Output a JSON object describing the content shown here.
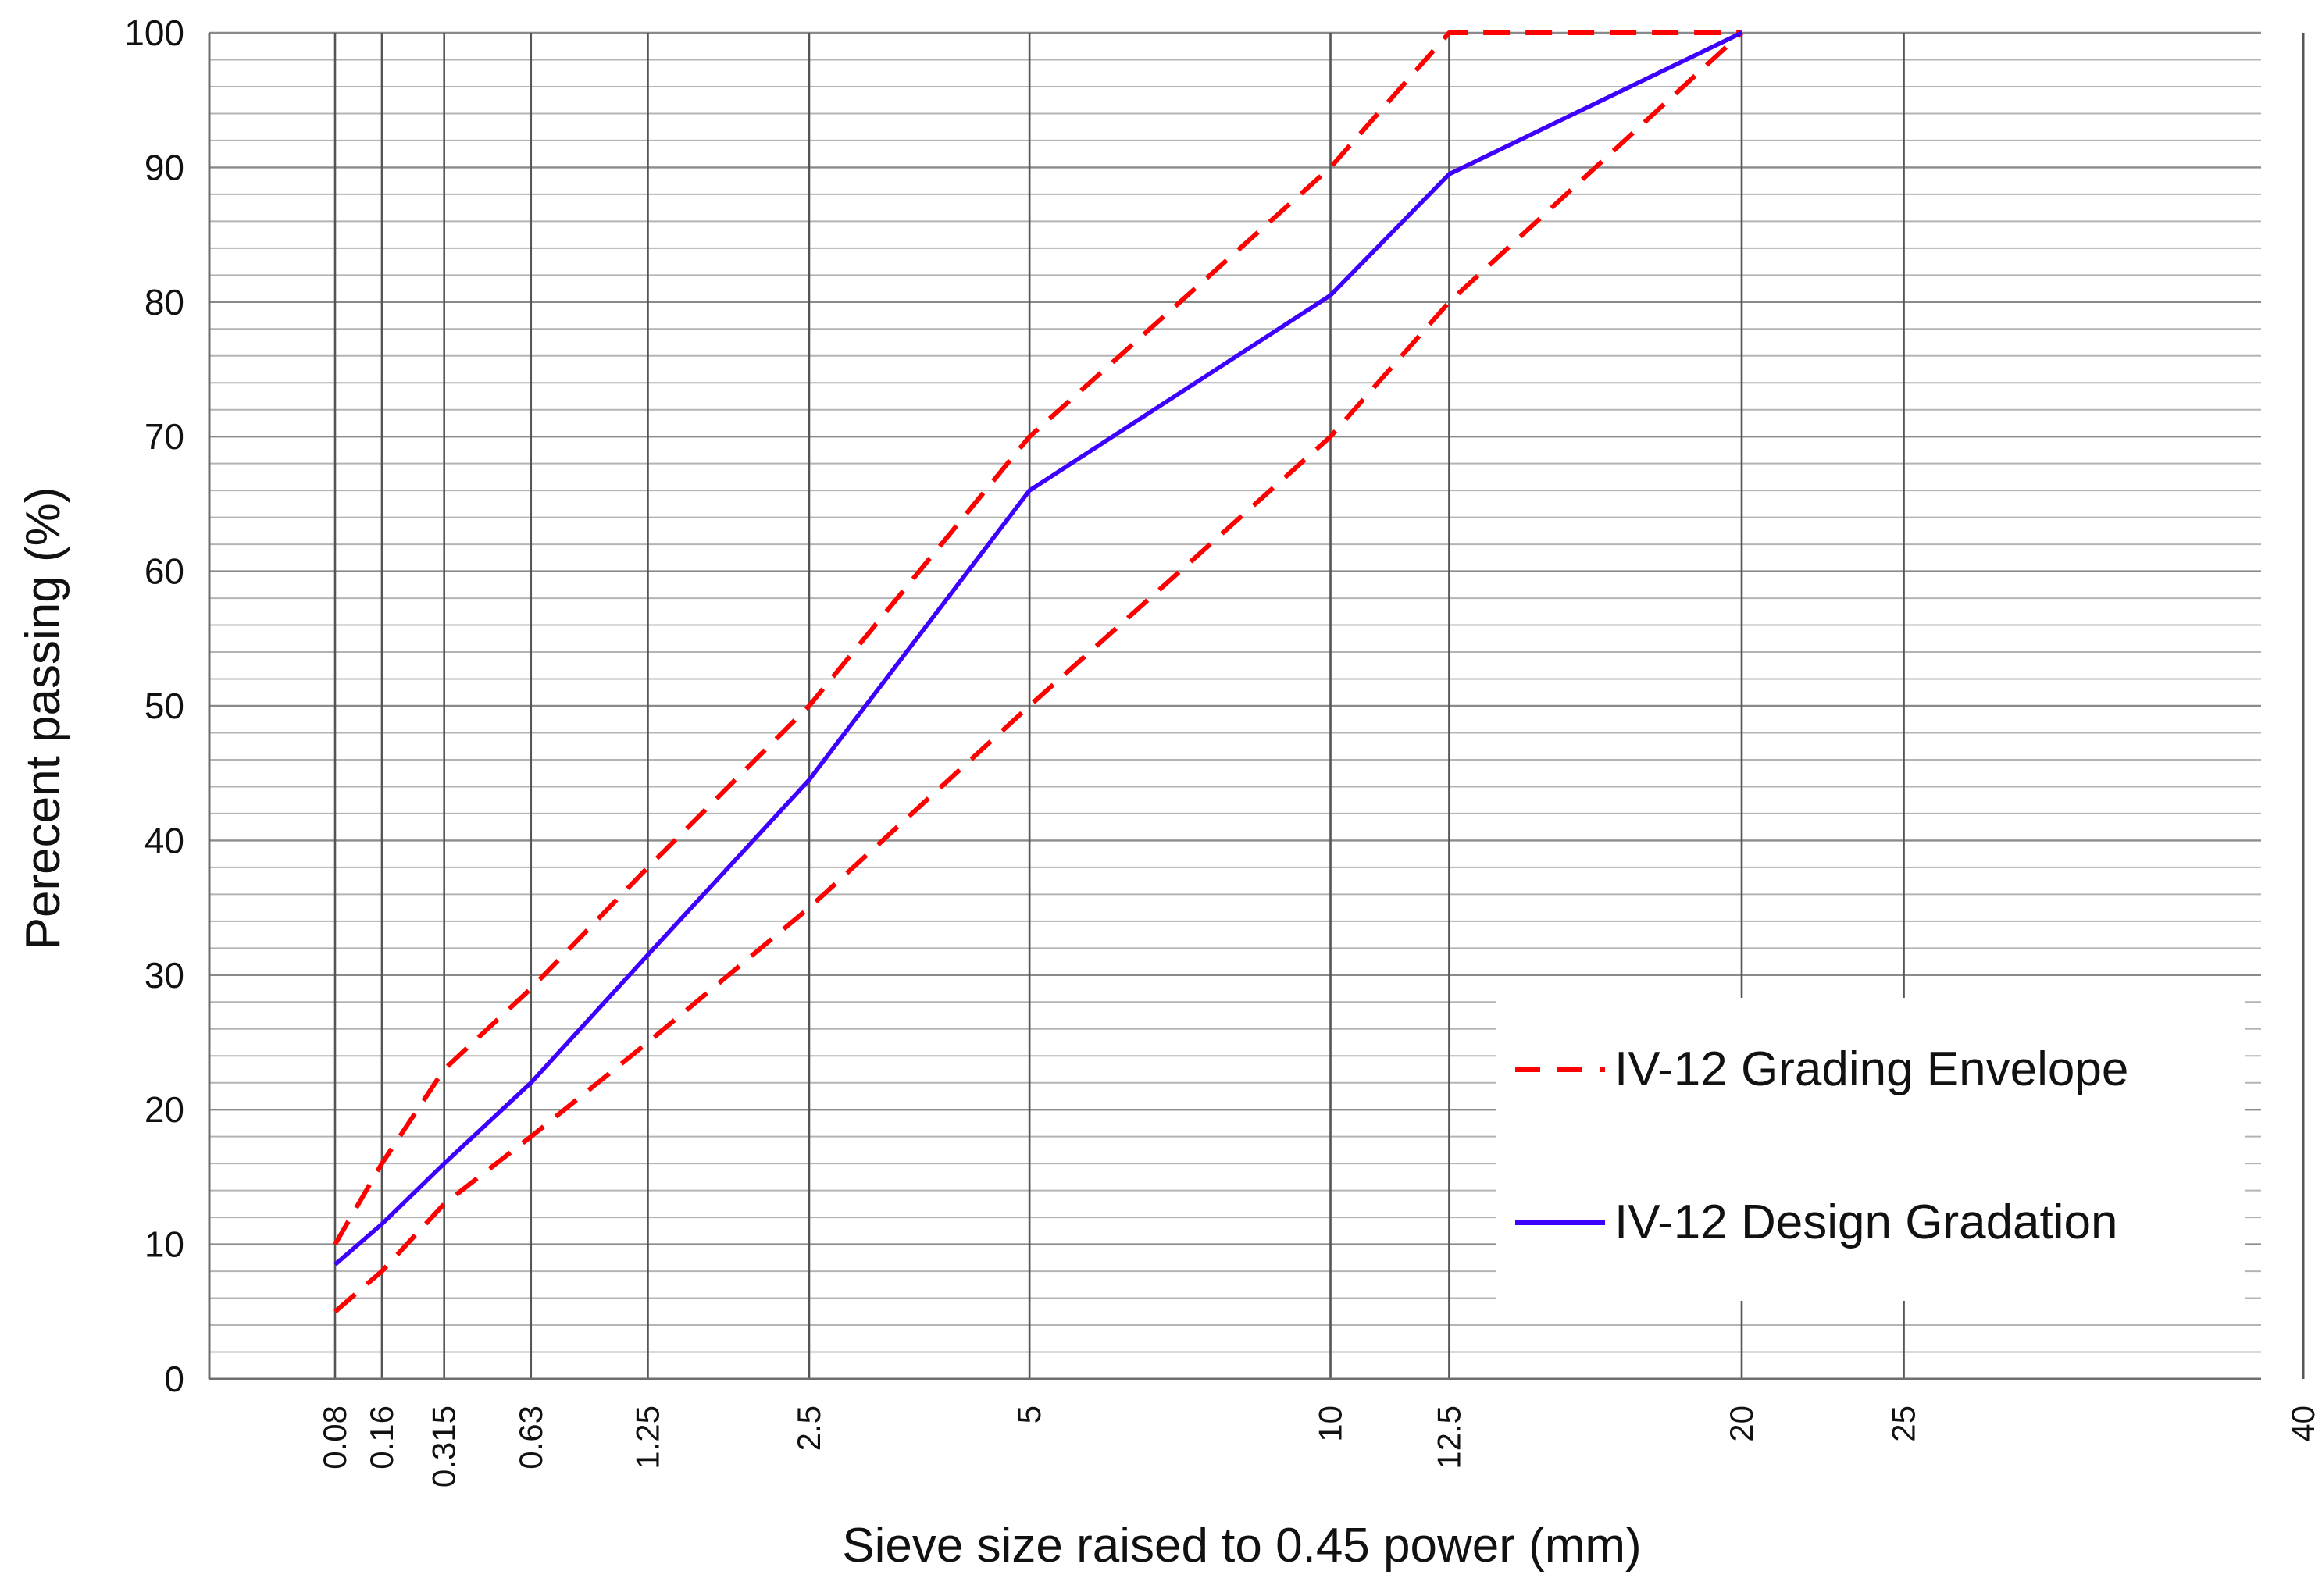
{
  "chart_data": {
    "type": "line",
    "title": "",
    "xlabel": "Sieve size raised to 0.45 power (mm)",
    "ylabel": "Perecent passing (%)",
    "x_scale": "power 0.45",
    "x_ticks": [
      "0.08",
      "0.16",
      "0.315",
      "0.63",
      "1.25",
      "2.5",
      "5",
      "10",
      "12.5",
      "20",
      "25",
      "40"
    ],
    "x_tick_values": [
      0.08,
      0.16,
      0.315,
      0.63,
      1.25,
      2.5,
      5,
      10,
      12.5,
      20,
      25,
      40
    ],
    "y_ticks": [
      "0",
      "10",
      "20",
      "30",
      "40",
      "50",
      "60",
      "70",
      "80",
      "90",
      "100"
    ],
    "y_tick_values": [
      0,
      10,
      20,
      30,
      40,
      50,
      60,
      70,
      80,
      90,
      100
    ],
    "ylim": [
      0,
      100
    ],
    "y_minor_step": 2,
    "grid": true,
    "legend_position": "lower-right",
    "series": [
      {
        "name": "IV-12 Grading Envelope",
        "role": "upper limit",
        "style": "dashed",
        "color": "#ff0000",
        "x": [
          0.08,
          0.16,
          0.315,
          0.63,
          1.25,
          2.5,
          5,
          10,
          12.5,
          20
        ],
        "values": [
          10,
          16,
          23,
          29,
          38,
          50,
          70,
          90,
          100,
          100
        ]
      },
      {
        "name": "IV-12 Grading Envelope",
        "role": "lower limit",
        "style": "dashed",
        "color": "#ff0000",
        "x": [
          0.08,
          0.16,
          0.315,
          0.63,
          1.25,
          2.5,
          5,
          10,
          12.5,
          20
        ],
        "values": [
          5,
          8,
          13,
          18,
          25,
          35,
          50,
          70,
          80,
          100
        ]
      },
      {
        "name": "IV-12 Design Gradation",
        "role": "design",
        "style": "solid",
        "color": "#3d00ff",
        "x": [
          0.08,
          0.16,
          0.315,
          0.63,
          1.25,
          2.5,
          5,
          10,
          12.5,
          20
        ],
        "values": [
          8.5,
          11.5,
          16,
          22,
          31.5,
          44.5,
          66,
          80.5,
          89.5,
          100
        ]
      }
    ],
    "legend": [
      {
        "label": "IV-12 Grading Envelope",
        "style": "dashed",
        "color": "#ff0000"
      },
      {
        "label": "IV-12 Design Gradation",
        "style": "solid",
        "color": "#3d00ff"
      }
    ]
  }
}
